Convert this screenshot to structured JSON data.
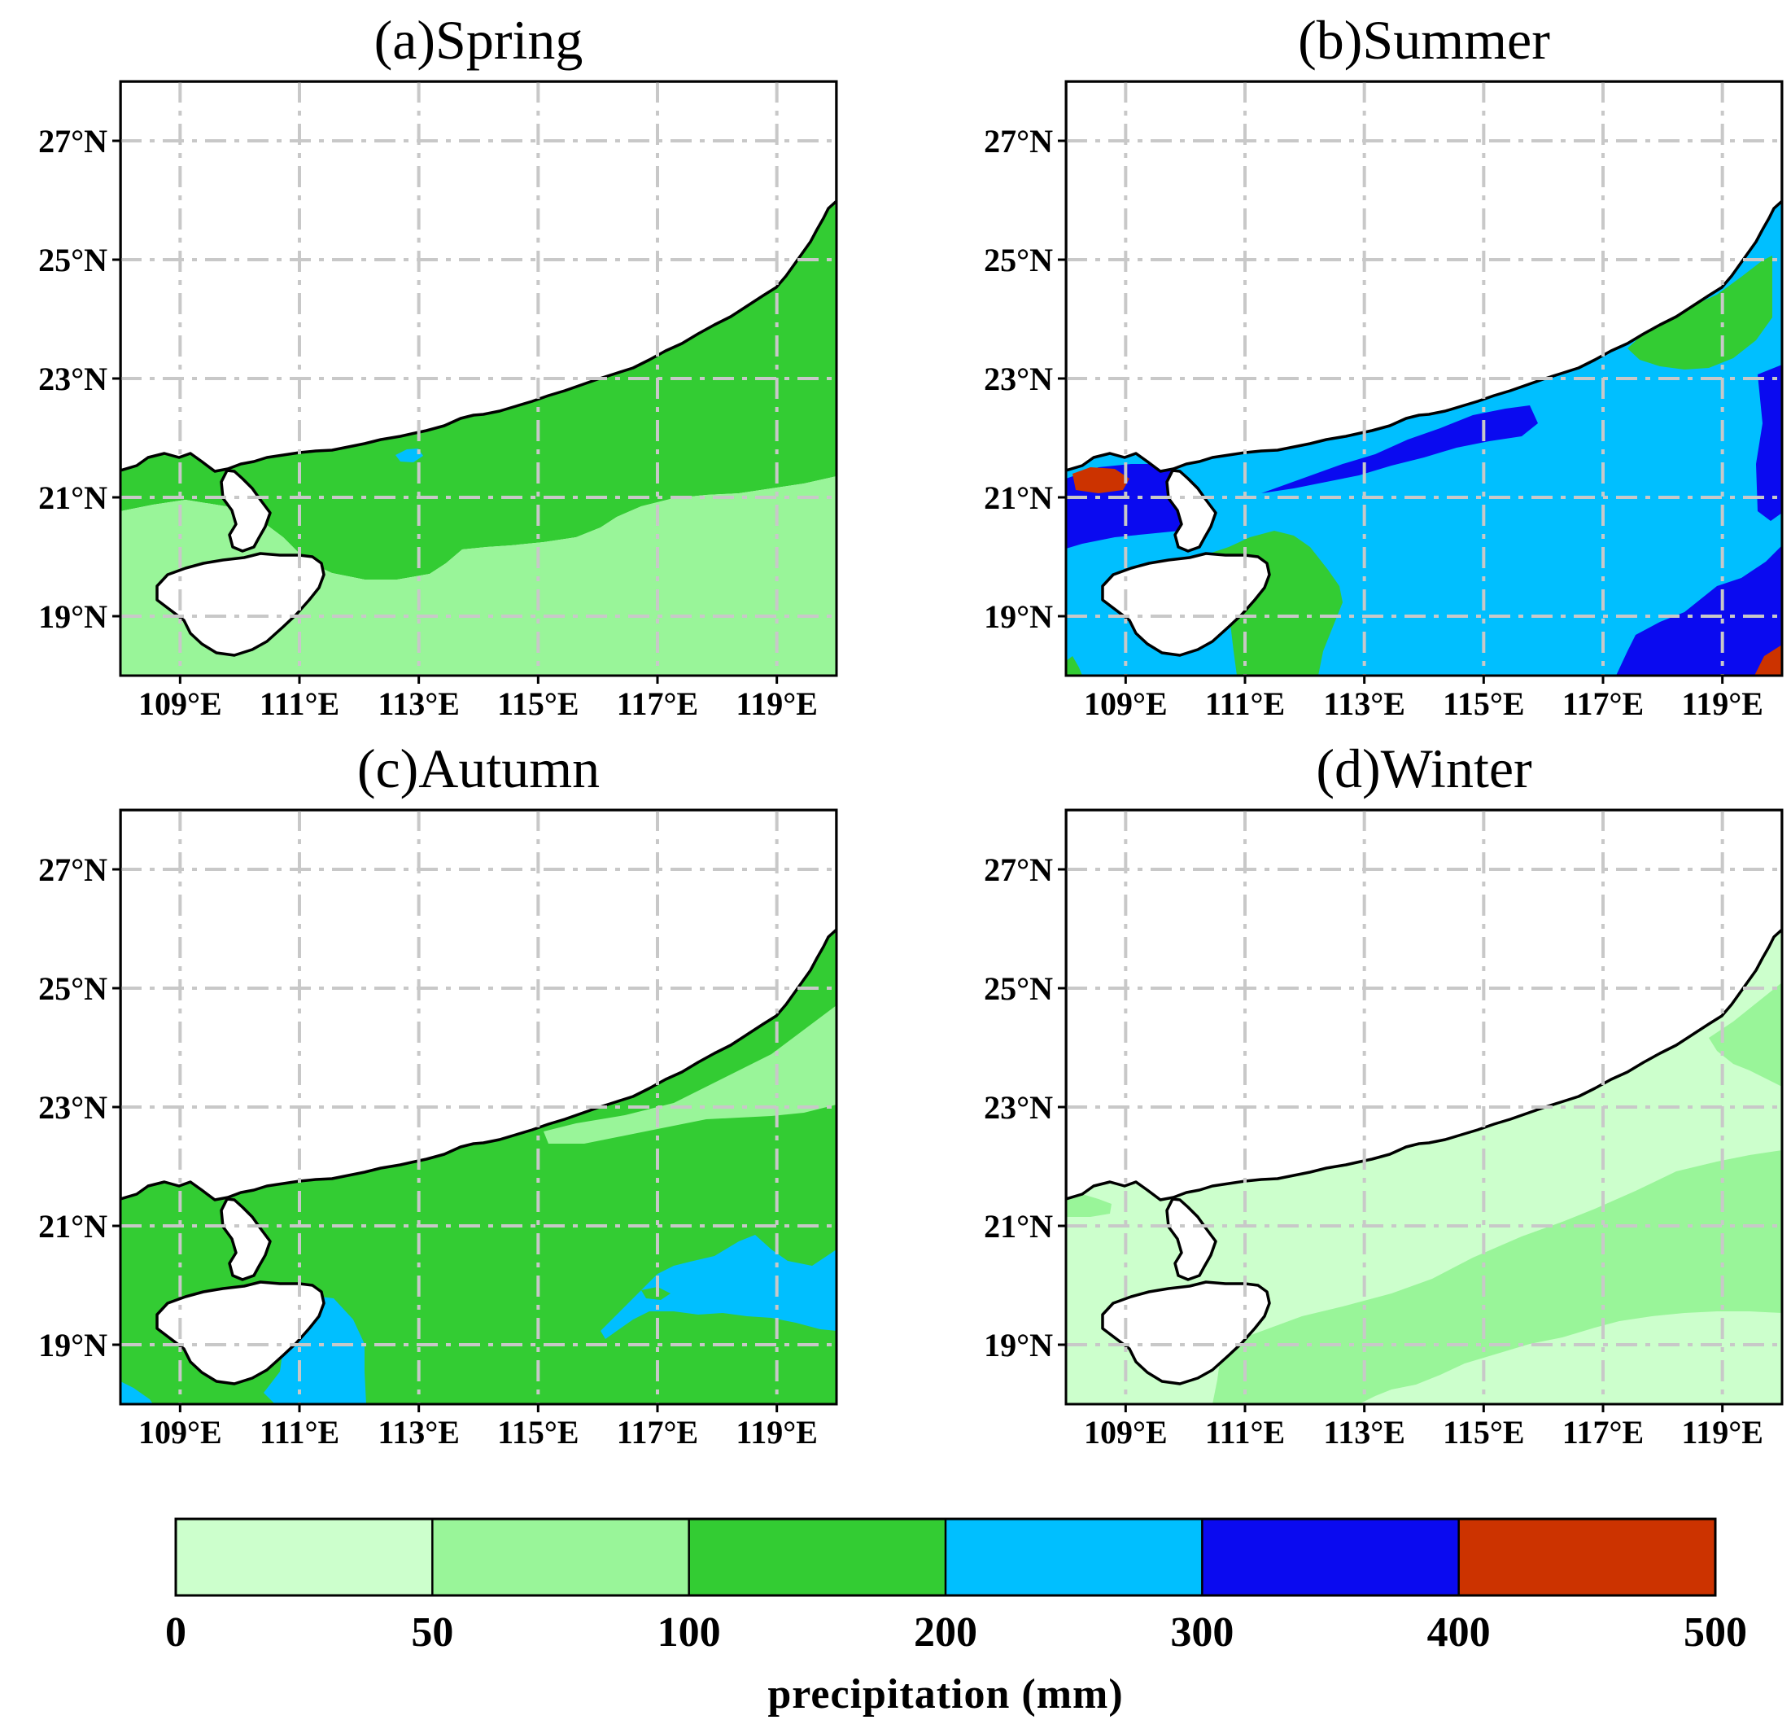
{
  "figure": {
    "colorbar": {
      "label": "precipitation (mm)",
      "ticks": [
        "0",
        "50",
        "100",
        "200",
        "300",
        "400",
        "500"
      ],
      "bins": [
        {
          "from": 0,
          "to": 50,
          "color": "#ccffcc"
        },
        {
          "from": 50,
          "to": 100,
          "color": "#99f599"
        },
        {
          "from": 100,
          "to": 200,
          "color": "#33cc33"
        },
        {
          "from": 200,
          "to": 300,
          "color": "#00bfff"
        },
        {
          "from": 300,
          "to": 400,
          "color": "#0a0af0"
        },
        {
          "from": 400,
          "to": 500,
          "color": "#cc3300"
        }
      ]
    }
  },
  "chart_data": [
    {
      "type": "heatmap",
      "title": "(a)Spring",
      "lon_ticks": [
        "109°E",
        "111°E",
        "113°E",
        "115°E",
        "117°E",
        "119°E"
      ],
      "lat_ticks": [
        "27°N",
        "25°N",
        "23°N",
        "21°N",
        "19°N"
      ],
      "lon_range": [
        108,
        120
      ],
      "lat_range": [
        18,
        28
      ],
      "grid": "dash-dot",
      "regions": [
        {
          "class": "100-200 mm",
          "color": "#33cc33",
          "area": "coastal shelf waters north of ~20°N and along the Fujian coast"
        },
        {
          "class": "50-100 mm",
          "color": "#99f599",
          "area": "offshore waters south of ~20–21°N and west of Hainan"
        },
        {
          "class": "200-300 mm",
          "color": "#00bfff",
          "area": "small patch near Pearl River estuary (~113°E, 22°N)"
        }
      ]
    },
    {
      "type": "heatmap",
      "title": "(b)Summer",
      "lon_ticks": [
        "109°E",
        "111°E",
        "113°E",
        "115°E",
        "117°E",
        "119°E"
      ],
      "lat_ticks": [
        "27°N",
        "25°N",
        "23°N",
        "21°N",
        "19°N"
      ],
      "lon_range": [
        108,
        120
      ],
      "lat_range": [
        18,
        28
      ],
      "grid": "dash-dot",
      "regions": [
        {
          "class": "200-300 mm",
          "color": "#00bfff",
          "area": "most of the open sea"
        },
        {
          "class": "100-200 mm",
          "color": "#33cc33",
          "area": "east of Hainan (~110.5–112°E) and Taiwan Strait near 23–25°N"
        },
        {
          "class": "300-400 mm",
          "color": "#0a0af0",
          "area": "Gulf of Tonkin, Pearl River coast, southeast corner and east edge"
        },
        {
          "class": "400-500 mm",
          "color": "#cc3300",
          "area": "northern Gulf of Tonkin (~108.5°E, 21.4°N) and far southeast corner"
        }
      ]
    },
    {
      "type": "heatmap",
      "title": "(c)Autumn",
      "lon_ticks": [
        "109°E",
        "111°E",
        "113°E",
        "115°E",
        "117°E",
        "119°E"
      ],
      "lat_ticks": [
        "27°N",
        "25°N",
        "23°N",
        "21°N",
        "19°N"
      ],
      "lon_range": [
        108,
        120
      ],
      "lat_range": [
        18,
        28
      ],
      "grid": "dash-dot",
      "regions": [
        {
          "class": "100-200 mm",
          "color": "#33cc33",
          "area": "most of the sea"
        },
        {
          "class": "50-100 mm",
          "color": "#99f599",
          "area": "Taiwan Strait and Fujian coast north of ~22.8°N, east of 115°E"
        },
        {
          "class": "200-300 mm",
          "color": "#00bfff",
          "area": "south and east of Hainan and offshore patch 116–120°E, 19–21°N"
        }
      ]
    },
    {
      "type": "heatmap",
      "title": "(d)Winter",
      "lon_ticks": [
        "109°E",
        "111°E",
        "113°E",
        "115°E",
        "117°E",
        "119°E"
      ],
      "lat_ticks": [
        "27°N",
        "25°N",
        "23°N",
        "21°N",
        "19°N"
      ],
      "lon_range": [
        108,
        120
      ],
      "lat_range": [
        18,
        28
      ],
      "grid": "dash-dot",
      "regions": [
        {
          "class": "0-50 mm",
          "color": "#ccffcc",
          "area": "coastal waters, Gulf of Tonkin and southern strip"
        },
        {
          "class": "50-100 mm",
          "color": "#99f599",
          "area": "offshore band from south of Hainan to the east, 19–22°N, and along Fujian coast"
        }
      ]
    }
  ]
}
